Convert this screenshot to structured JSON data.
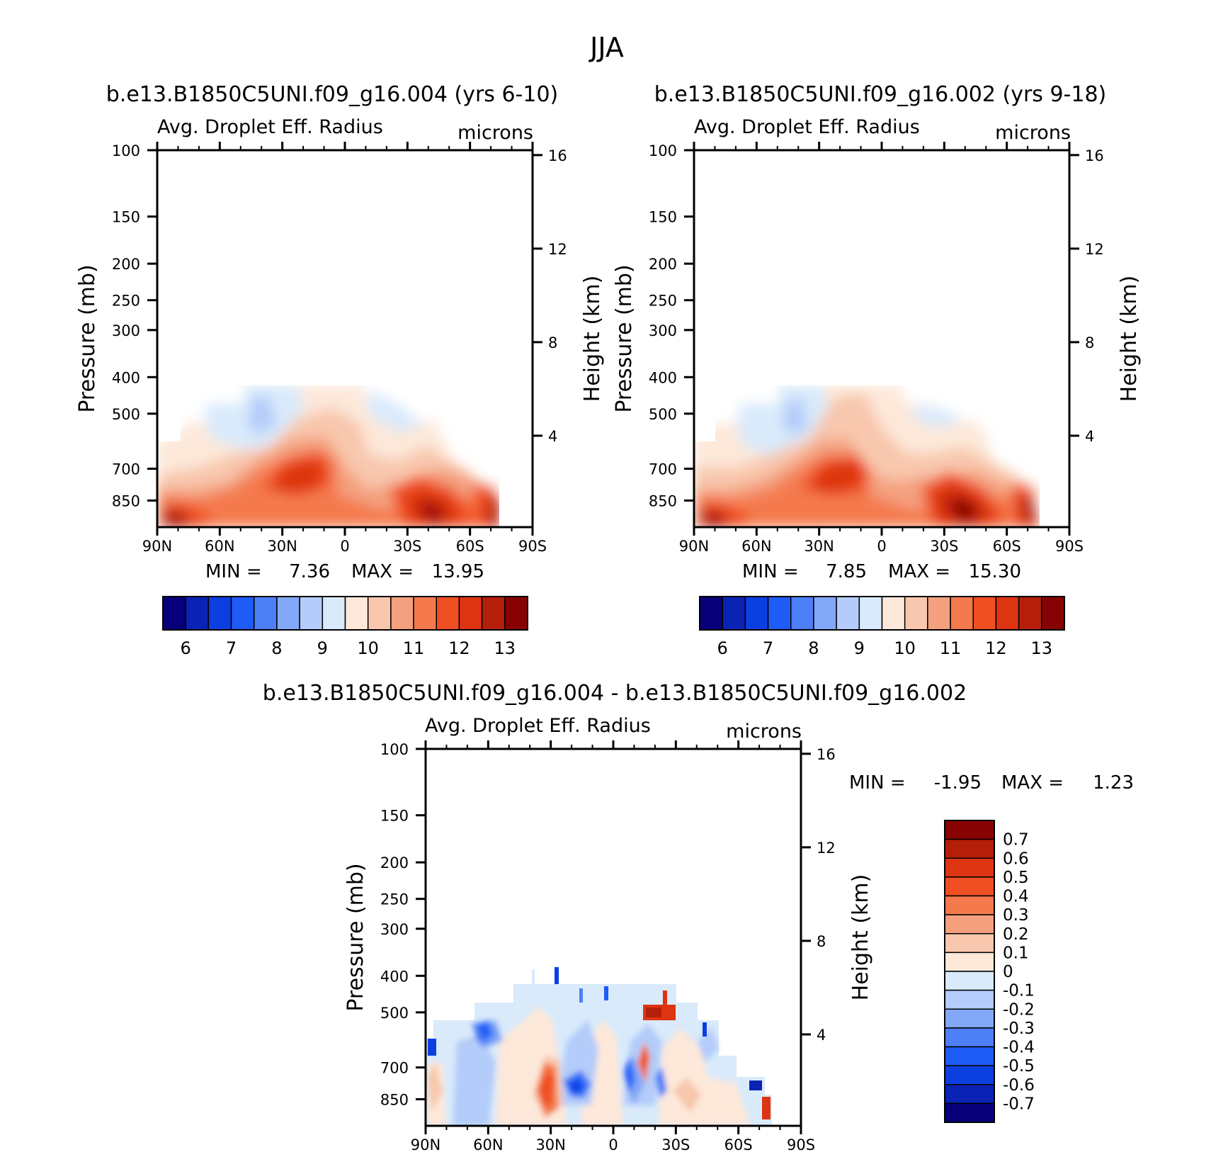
{
  "title": "JJA",
  "panels": [
    {
      "id": "left",
      "title": "b.e13.B1850C5UNI.f09_g16.004 (yrs 6-10)",
      "variable": "Avg. Droplet Eff. Radius",
      "units": "microns",
      "ylabel": "Pressure (mb)",
      "y2label": "Height (km)",
      "stats": {
        "min_label": "MIN =",
        "min": "7.36",
        "max_label": "MAX =",
        "max": "13.95"
      },
      "colorbar": {
        "colors": [
          "#08007a",
          "#0a23b4",
          "#0c3fe0",
          "#1f5bf7",
          "#4d80f7",
          "#83a8f7",
          "#b3ccf9",
          "#d9eafb",
          "#fde8d9",
          "#f8c7ad",
          "#f4a07f",
          "#f47a4d",
          "#f04f23",
          "#dd3411",
          "#b51f0a",
          "#870303"
        ],
        "labels": [
          "6",
          "7",
          "8",
          "9",
          "10",
          "11",
          "12",
          "13"
        ]
      }
    },
    {
      "id": "right",
      "title": "b.e13.B1850C5UNI.f09_g16.002 (yrs 9-18)",
      "variable": "Avg. Droplet Eff. Radius",
      "units": "microns",
      "ylabel": "Pressure (mb)",
      "y2label": "Height (km)",
      "stats": {
        "min_label": "MIN =",
        "min": "7.85",
        "max_label": "MAX =",
        "max": "15.30"
      },
      "colorbar": {
        "colors": [
          "#08007a",
          "#0a23b4",
          "#0c3fe0",
          "#1f5bf7",
          "#4d80f7",
          "#83a8f7",
          "#b3ccf9",
          "#d9eafb",
          "#fde8d9",
          "#f8c7ad",
          "#f4a07f",
          "#f47a4d",
          "#f04f23",
          "#dd3411",
          "#b51f0a",
          "#870303"
        ],
        "labels": [
          "6",
          "7",
          "8",
          "9",
          "10",
          "11",
          "12",
          "13"
        ]
      }
    },
    {
      "id": "diff",
      "title": "b.e13.B1850C5UNI.f09_g16.004 - b.e13.B1850C5UNI.f09_g16.002",
      "variable": "Avg. Droplet Eff. Radius",
      "units": "microns",
      "ylabel": "Pressure (mb)",
      "y2label": "Height (km)",
      "stats": {
        "min_label": "MIN =",
        "min": "-1.95",
        "max_label": "MAX =",
        "max": "1.23"
      },
      "colorbar": {
        "colors": [
          "#870303",
          "#b51f0a",
          "#dd3411",
          "#f04f23",
          "#f47a4d",
          "#f4a07f",
          "#f8c7ad",
          "#fde8d9",
          "#d9eafb",
          "#b3ccf9",
          "#83a8f7",
          "#4d80f7",
          "#1f5bf7",
          "#0c3fe0",
          "#0a23b4",
          "#08007a"
        ],
        "labels": [
          "0.7",
          "0.6",
          "0.5",
          "0.4",
          "0.3",
          "0.2",
          "0.1",
          "0",
          "-0.1",
          "-0.2",
          "-0.3",
          "-0.4",
          "-0.5",
          "-0.6",
          "-0.7"
        ]
      }
    }
  ],
  "chart_data": [
    {
      "type": "heatmap",
      "title": "b.e13.B1850C5UNI.f09_g16.004 (yrs 6-10)",
      "subtitle": "Avg. Droplet Eff. Radius",
      "units": "microns",
      "xlabel": "",
      "ylabel": "Pressure (mb)",
      "y2label": "Height (km)",
      "x_ticks": [
        "90N",
        "60N",
        "30N",
        "0",
        "30S",
        "60S",
        "90S"
      ],
      "y_ticks": [
        100,
        150,
        200,
        250,
        300,
        400,
        500,
        700,
        850
      ],
      "y2_ticks": [
        16,
        12,
        8,
        4
      ],
      "ylim": [
        1000,
        100
      ],
      "y_scale": "log",
      "min": 7.36,
      "max": 13.95,
      "levels": [
        6,
        6.5,
        7,
        7.5,
        8,
        8.5,
        9,
        9.5,
        10,
        10.5,
        11,
        11.5,
        12,
        12.5,
        13
      ],
      "features": [
        {
          "lat": 78,
          "p": 900,
          "value": 13.9
        },
        {
          "lat": 30,
          "p": 700,
          "value": 12.9
        },
        {
          "lat": -40,
          "p": 840,
          "value": 13.9
        },
        {
          "lat": -75,
          "p": 830,
          "value": 13.0
        },
        {
          "lat": 40,
          "p": 470,
          "value": 9.2
        }
      ]
    },
    {
      "type": "heatmap",
      "title": "b.e13.B1850C5UNI.f09_g16.002 (yrs 9-18)",
      "subtitle": "Avg. Droplet Eff. Radius",
      "units": "microns",
      "xlabel": "",
      "ylabel": "Pressure (mb)",
      "y2label": "Height (km)",
      "x_ticks": [
        "90N",
        "60N",
        "30N",
        "0",
        "30S",
        "60S",
        "90S"
      ],
      "y_ticks": [
        100,
        150,
        200,
        250,
        300,
        400,
        500,
        700,
        850
      ],
      "y2_ticks": [
        16,
        12,
        8,
        4
      ],
      "ylim": [
        1000,
        100
      ],
      "y_scale": "log",
      "min": 7.85,
      "max": 15.3,
      "levels": [
        6,
        6.5,
        7,
        7.5,
        8,
        8.5,
        9,
        9.5,
        10,
        10.5,
        11,
        11.5,
        12,
        12.5,
        13
      ],
      "features": [
        {
          "lat": 78,
          "p": 900,
          "value": 14.0
        },
        {
          "lat": 22,
          "p": 680,
          "value": 12.8
        },
        {
          "lat": -38,
          "p": 820,
          "value": 15.3
        },
        {
          "lat": -70,
          "p": 830,
          "value": 13.0
        },
        {
          "lat": 42,
          "p": 480,
          "value": 9.3
        }
      ]
    },
    {
      "type": "heatmap",
      "title": "b.e13.B1850C5UNI.f09_g16.004 - b.e13.B1850C5UNI.f09_g16.002",
      "subtitle": "Avg. Droplet Eff. Radius",
      "units": "microns",
      "xlabel": "",
      "ylabel": "Pressure (mb)",
      "y2label": "Height (km)",
      "x_ticks": [
        "90N",
        "60N",
        "30N",
        "0",
        "30S",
        "60S",
        "90S"
      ],
      "y_ticks": [
        100,
        150,
        200,
        250,
        300,
        400,
        500,
        700,
        850
      ],
      "y2_ticks": [
        16,
        12,
        8,
        4
      ],
      "ylim": [
        1000,
        100
      ],
      "y_scale": "log",
      "min": -1.95,
      "max": 1.23,
      "levels": [
        -0.7,
        -0.6,
        -0.5,
        -0.4,
        -0.3,
        -0.2,
        -0.1,
        0,
        0.1,
        0.2,
        0.3,
        0.4,
        0.5,
        0.6,
        0.7
      ],
      "features": [
        {
          "lat": 20,
          "p": 710,
          "value": -1.95
        },
        {
          "lat": 34,
          "p": 680,
          "value": 0.5
        },
        {
          "lat": -18,
          "p": 500,
          "value": 1.23
        },
        {
          "lat": 5,
          "p": 690,
          "value": -0.7
        },
        {
          "lat": 60,
          "p": 530,
          "value": -0.6
        },
        {
          "lat": -77,
          "p": 790,
          "value": 0.7
        }
      ]
    }
  ]
}
